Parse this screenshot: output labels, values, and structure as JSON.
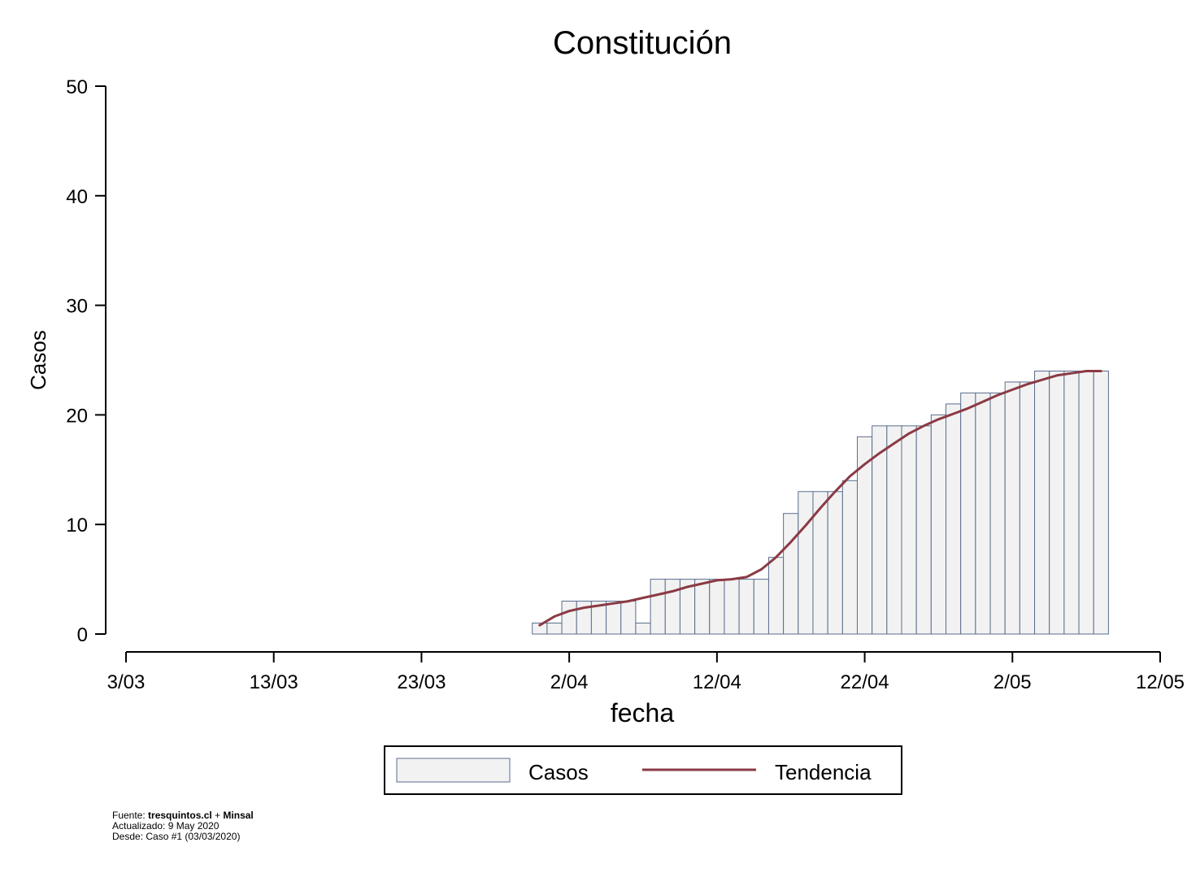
{
  "chart_data": {
    "type": "bar",
    "title": "Constitución",
    "xlabel": "fecha",
    "ylabel": "Casos",
    "ylim": [
      0,
      50
    ],
    "yticks": [
      0,
      10,
      20,
      30,
      40,
      50
    ],
    "xticks": [
      "3/03",
      "13/03",
      "23/03",
      "2/04",
      "12/04",
      "22/04",
      "2/05",
      "12/05"
    ],
    "xlim": [
      "2020-03-03",
      "2020-05-12"
    ],
    "grid": false,
    "legend_placement": "bottom",
    "series": [
      {
        "name": "Casos",
        "type": "bar",
        "color": "#f2f2f2",
        "edge_color": "#5a6e8c",
        "x": [
          "2020-03-31",
          "2020-04-01",
          "2020-04-02",
          "2020-04-03",
          "2020-04-04",
          "2020-04-05",
          "2020-04-06",
          "2020-04-07",
          "2020-04-08",
          "2020-04-09",
          "2020-04-10",
          "2020-04-11",
          "2020-04-12",
          "2020-04-13",
          "2020-04-14",
          "2020-04-15",
          "2020-04-16",
          "2020-04-17",
          "2020-04-18",
          "2020-04-19",
          "2020-04-20",
          "2020-04-21",
          "2020-04-22",
          "2020-04-23",
          "2020-04-24",
          "2020-04-25",
          "2020-04-26",
          "2020-04-27",
          "2020-04-28",
          "2020-04-29",
          "2020-04-30",
          "2020-05-01",
          "2020-05-02",
          "2020-05-03",
          "2020-05-04",
          "2020-05-05",
          "2020-05-06",
          "2020-05-07",
          "2020-05-08"
        ],
        "values": [
          1,
          1,
          3,
          3,
          3,
          3,
          3,
          1,
          5,
          5,
          5,
          5,
          5,
          5,
          5,
          5,
          7,
          11,
          13,
          13,
          13,
          14,
          18,
          19,
          19,
          19,
          19,
          20,
          21,
          22,
          22,
          22,
          23,
          23,
          24,
          24,
          24,
          24,
          24
        ]
      },
      {
        "name": "Tendencia",
        "type": "line",
        "color": "#8b3a44",
        "x": [
          "2020-03-31",
          "2020-04-01",
          "2020-04-02",
          "2020-04-03",
          "2020-04-04",
          "2020-04-05",
          "2020-04-06",
          "2020-04-07",
          "2020-04-08",
          "2020-04-09",
          "2020-04-10",
          "2020-04-11",
          "2020-04-12",
          "2020-04-13",
          "2020-04-14",
          "2020-04-15",
          "2020-04-16",
          "2020-04-17",
          "2020-04-18",
          "2020-04-19",
          "2020-04-20",
          "2020-04-21",
          "2020-04-22",
          "2020-04-23",
          "2020-04-24",
          "2020-04-25",
          "2020-04-26",
          "2020-04-27",
          "2020-04-28",
          "2020-04-29",
          "2020-04-30",
          "2020-05-01",
          "2020-05-02",
          "2020-05-03",
          "2020-05-04",
          "2020-05-05",
          "2020-05-06",
          "2020-05-07",
          "2020-05-08"
        ],
        "values": [
          0.8,
          1.6,
          2.1,
          2.4,
          2.6,
          2.8,
          3.0,
          3.3,
          3.6,
          3.9,
          4.3,
          4.6,
          4.9,
          5.0,
          5.2,
          5.9,
          7.0,
          8.4,
          9.9,
          11.5,
          13.0,
          14.4,
          15.5,
          16.5,
          17.4,
          18.3,
          19.0,
          19.6,
          20.1,
          20.6,
          21.2,
          21.8,
          22.3,
          22.8,
          23.2,
          23.6,
          23.8,
          24.0,
          24.0
        ]
      }
    ]
  },
  "legend": {
    "casos_label": "Casos",
    "tendencia_label": "Tendencia"
  },
  "footer": {
    "line1_prefix": "Fuente: ",
    "line1_bold1": "tresquintos.cl",
    "line1_sep": " + ",
    "line1_bold2": "Minsal",
    "line2": "Actualizado: 9 May 2020",
    "line3": "Desde: Caso #1  (03/03/2020)"
  }
}
